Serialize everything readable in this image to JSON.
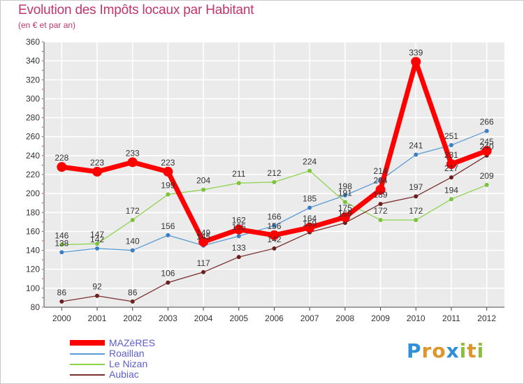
{
  "page": {
    "title": "Evolution des Impôts locaux par Habitant",
    "subtitle": "(en € et par an)"
  },
  "brand": {
    "letters": [
      {
        "ch": "P",
        "color": "#2f8fd8"
      },
      {
        "ch": "r",
        "color": "#e0952a"
      },
      {
        "ch": "o",
        "color": "#e0952a"
      },
      {
        "ch": "x",
        "color": "#2f8fd8"
      },
      {
        "ch": "i",
        "color": "#8cbf3f"
      },
      {
        "ch": "t",
        "color": "#e0952a"
      },
      {
        "ch": "i",
        "color": "#8cbf3f"
      }
    ]
  },
  "chart_data": {
    "type": "line",
    "title": "Evolution des Impôts locaux par Habitant",
    "subtitle": "(en € et par an)",
    "xlabel": "",
    "ylabel": "",
    "x": [
      "2000",
      "2001",
      "2002",
      "2003",
      "2004",
      "2005",
      "2006",
      "2007",
      "2008",
      "2009",
      "2010",
      "2011",
      "2012"
    ],
    "ylim": [
      80,
      360
    ],
    "yticks": [
      80,
      100,
      120,
      140,
      160,
      180,
      200,
      220,
      240,
      260,
      280,
      300,
      320,
      340,
      360
    ],
    "grid": true,
    "legend_position": "bottom-left",
    "series": [
      {
        "name": "Roaillan",
        "color": "#5b9bd5",
        "marker": "#3a7fc4",
        "values": [
          138,
          142,
          140,
          156,
          145,
          155,
          166,
          185,
          198,
          214,
          241,
          251,
          266
        ],
        "labels": [
          "138",
          "142",
          "140",
          "156",
          "145",
          "155",
          "166",
          "185",
          "198",
          "214",
          "241",
          "251",
          "266"
        ]
      },
      {
        "name": "Le Nizan",
        "color": "#8bd34d",
        "marker": "#7cc33c",
        "values": [
          146,
          147,
          172,
          199,
          204,
          211,
          212,
          224,
          191,
          172,
          172,
          194,
          209
        ],
        "labels": [
          "146",
          "147",
          "172",
          "199",
          "204",
          "211",
          "212",
          "224",
          "191",
          "172",
          "172",
          "194",
          "209"
        ]
      },
      {
        "name": "Aubiac",
        "color": "#7a2e2e",
        "marker": "#6b1f1f",
        "values": [
          86,
          92,
          86,
          106,
          117,
          133,
          142,
          159,
          169,
          189,
          197,
          217,
          240
        ],
        "labels": [
          "86",
          "92",
          "86",
          "106",
          "117",
          "133",
          "142",
          "159",
          "169",
          "189",
          "197",
          "217",
          "240"
        ]
      },
      {
        "name": "MAZèRES",
        "color": "#ff0000",
        "marker": "#ff0000",
        "values": [
          228,
          223,
          233,
          223,
          149,
          162,
          156,
          164,
          175,
          204,
          339,
          231,
          245
        ],
        "labels": [
          "228",
          "223",
          "233",
          "223",
          "149",
          "162",
          "156",
          "164",
          "175",
          "204",
          "339",
          "231",
          "245"
        ]
      }
    ]
  },
  "legend": [
    {
      "label": "MAZèRES",
      "color": "#ff0000"
    },
    {
      "label": "Roaillan",
      "color": "#5b9bd5"
    },
    {
      "label": "Le Nizan",
      "color": "#8bd34d"
    },
    {
      "label": "Aubiac",
      "color": "#7a2e2e"
    }
  ]
}
